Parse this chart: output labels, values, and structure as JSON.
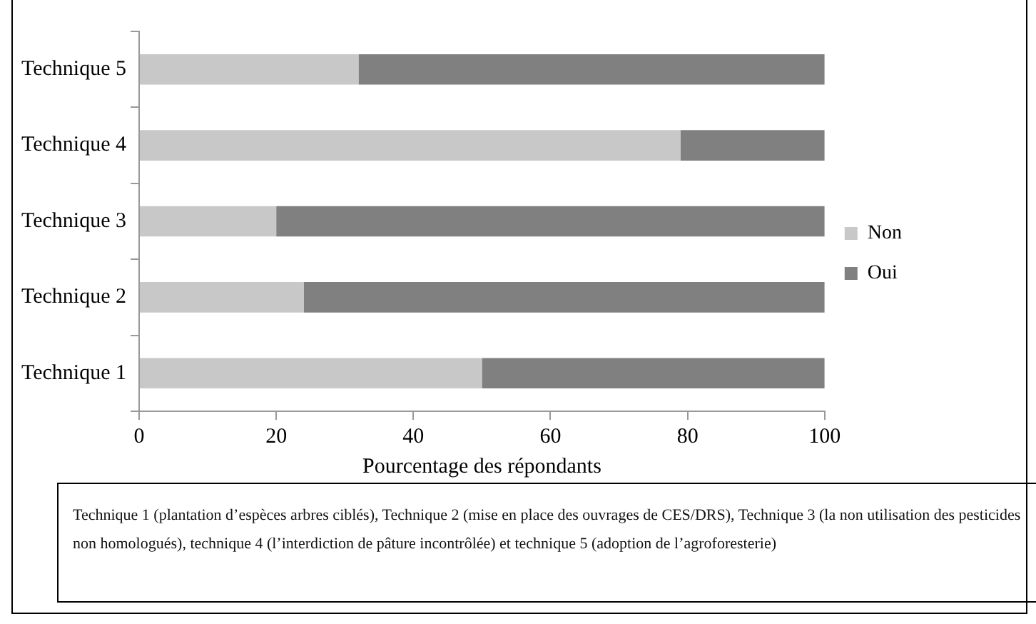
{
  "chart_data": {
    "type": "bar",
    "orientation": "horizontal",
    "stacked": true,
    "categories": [
      "Technique 5",
      "Technique 4",
      "Technique 3",
      "Technique 2",
      "Technique 1"
    ],
    "series": [
      {
        "name": "Non",
        "color": "#c8c8c8",
        "values": [
          32,
          79,
          20,
          24,
          50
        ]
      },
      {
        "name": "Oui",
        "color": "#808080",
        "values": [
          68,
          21,
          80,
          76,
          50
        ]
      }
    ],
    "xlabel": "Pourcentage des répondants",
    "xlim": [
      0,
      100
    ],
    "xticks": [
      0,
      20,
      40,
      60,
      80,
      100
    ],
    "grid": false,
    "legend": "right",
    "annotations": [
      "Technique 1 (plantation d’espèces arbres ciblés), Technique 2 (mise en place des ouvrages de CES/DRS), Technique 3 (la non utilisation des pesticides non homologués), technique 4 (l’interdiction de pâture incontrôlée) et technique 5 (adoption de l’agroforesterie)"
    ]
  }
}
